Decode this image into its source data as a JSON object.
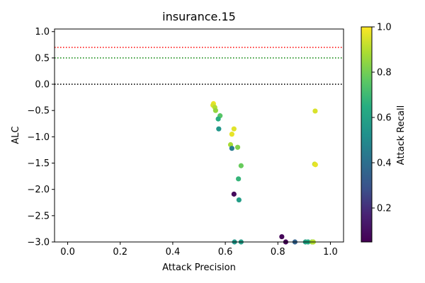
{
  "chart_data": {
    "type": "scatter",
    "title": "insurance.15",
    "xlabel": "Attack Precision",
    "ylabel": "ALC",
    "xlim": [
      -0.05,
      1.05
    ],
    "ylim": [
      -3.0,
      1.05
    ],
    "xticks": [
      0.0,
      0.2,
      0.4,
      0.6,
      0.8,
      1.0
    ],
    "xtick_labels": [
      "0.0",
      "0.2",
      "0.4",
      "0.6",
      "0.8",
      "1.0"
    ],
    "yticks": [
      1.0,
      0.5,
      0.0,
      -0.5,
      -1.0,
      -1.5,
      -2.0,
      -2.5,
      -3.0
    ],
    "ytick_labels": [
      "1.0",
      "0.5",
      "0.0",
      "−0.5",
      "−1.0",
      "−1.5",
      "−2.0",
      "−2.5",
      "−3.0"
    ],
    "grid": false,
    "reference_lines": [
      {
        "y": 0.7,
        "color": "#ff0000",
        "style": "dotted"
      },
      {
        "y": 0.5,
        "color": "#008000",
        "style": "dotted"
      },
      {
        "y": 0.0,
        "color": "#000000",
        "style": "dotted"
      }
    ],
    "colorbar": {
      "label": "Attack Recall",
      "colormap": "viridis",
      "range": [
        0.05,
        1.0
      ],
      "ticks": [
        0.2,
        0.4,
        0.6,
        0.8,
        1.0
      ],
      "tick_labels": [
        "0.2",
        "0.4",
        "0.6",
        "0.8",
        "1.0"
      ]
    },
    "points": [
      {
        "x": 0.555,
        "y": -0.37,
        "c": 0.98
      },
      {
        "x": 0.553,
        "y": -0.4,
        "c": 0.95
      },
      {
        "x": 0.56,
        "y": -0.44,
        "c": 0.9
      },
      {
        "x": 0.563,
        "y": -0.5,
        "c": 0.85
      },
      {
        "x": 0.58,
        "y": -0.6,
        "c": 0.75
      },
      {
        "x": 0.573,
        "y": -0.66,
        "c": 0.65
      },
      {
        "x": 0.575,
        "y": -0.85,
        "c": 0.55
      },
      {
        "x": 0.633,
        "y": -0.85,
        "c": 0.96
      },
      {
        "x": 0.625,
        "y": -0.95,
        "c": 0.97
      },
      {
        "x": 0.62,
        "y": -1.15,
        "c": 0.88
      },
      {
        "x": 0.647,
        "y": -1.2,
        "c": 0.82
      },
      {
        "x": 0.625,
        "y": -1.22,
        "c": 0.45
      },
      {
        "x": 0.66,
        "y": -1.55,
        "c": 0.78
      },
      {
        "x": 0.65,
        "y": -1.8,
        "c": 0.68
      },
      {
        "x": 0.633,
        "y": -2.09,
        "c": 0.08
      },
      {
        "x": 0.652,
        "y": -2.2,
        "c": 0.58
      },
      {
        "x": 0.635,
        "y": -3.0,
        "c": 0.55
      },
      {
        "x": 0.66,
        "y": -3.0,
        "c": 0.58
      },
      {
        "x": 0.815,
        "y": -2.9,
        "c": 0.07
      },
      {
        "x": 0.83,
        "y": -3.0,
        "c": 0.06
      },
      {
        "x": 0.865,
        "y": -3.0,
        "c": 0.35
      },
      {
        "x": 0.905,
        "y": -3.0,
        "c": 0.6
      },
      {
        "x": 0.915,
        "y": -3.0,
        "c": 0.63
      },
      {
        "x": 0.93,
        "y": -3.0,
        "c": 0.85
      },
      {
        "x": 0.935,
        "y": -3.0,
        "c": 0.9
      },
      {
        "x": 0.942,
        "y": -0.51,
        "c": 0.95
      },
      {
        "x": 0.94,
        "y": -1.52,
        "c": 0.92
      },
      {
        "x": 0.943,
        "y": -1.53,
        "c": 0.97
      }
    ]
  }
}
